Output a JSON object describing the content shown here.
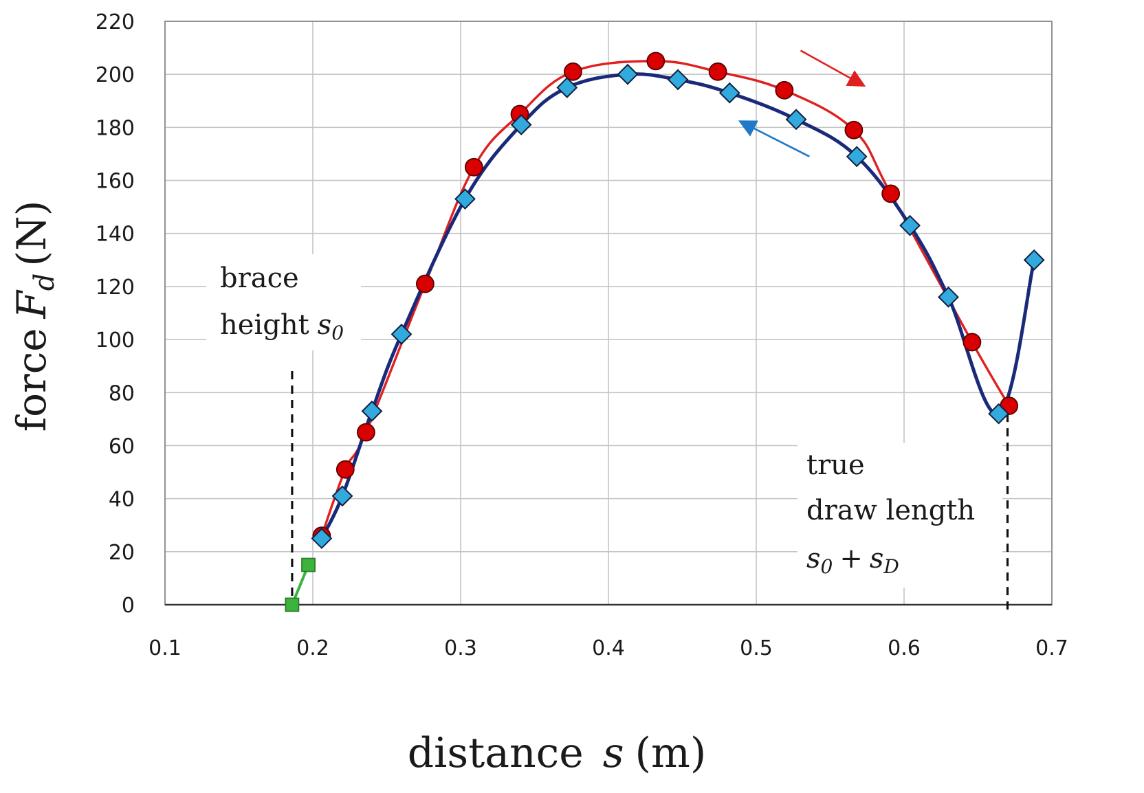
{
  "chart_data": {
    "type": "line",
    "xlabel": {
      "prefix": "distance",
      "symbol": "s",
      "unit": "(m)"
    },
    "ylabel": {
      "prefix": "force",
      "symbol": "F",
      "subscript": "d",
      "unit": "(N)"
    },
    "xlim": [
      0.1,
      0.7
    ],
    "ylim": [
      0,
      220
    ],
    "xticks": [
      0.1,
      0.2,
      0.3,
      0.4,
      0.5,
      0.6,
      0.7
    ],
    "xtick_labels": [
      "0.1",
      "0.2",
      "0.3",
      "0.4",
      "0.5",
      "0.6",
      "0.7"
    ],
    "yticks": [
      0,
      20,
      40,
      60,
      80,
      100,
      120,
      140,
      160,
      180,
      200,
      220
    ],
    "ytick_labels": [
      "0",
      "20",
      "40",
      "60",
      "80",
      "100",
      "120",
      "140",
      "160",
      "180",
      "200",
      "220"
    ],
    "grid": true,
    "series": [
      {
        "marker": "square",
        "color": "#3cb43c",
        "edge_color": "#2a7a2a",
        "points": [
          [
            0.186,
            0
          ],
          [
            0.197,
            15
          ]
        ]
      },
      {
        "marker": "circle",
        "color": "#d80000",
        "line_color": "#e02020",
        "points": [
          [
            0.206,
            26
          ],
          [
            0.222,
            51
          ],
          [
            0.236,
            65
          ],
          [
            0.276,
            121
          ],
          [
            0.309,
            165
          ],
          [
            0.34,
            185
          ],
          [
            0.376,
            201
          ],
          [
            0.432,
            205
          ],
          [
            0.474,
            201
          ],
          [
            0.519,
            194
          ],
          [
            0.566,
            179
          ],
          [
            0.591,
            155
          ],
          [
            0.646,
            99
          ],
          [
            0.671,
            75
          ]
        ]
      },
      {
        "marker": "diamond",
        "color": "#33aadd",
        "line_color": "#1a2a7a",
        "points": [
          [
            0.206,
            25
          ],
          [
            0.22,
            41
          ],
          [
            0.24,
            73
          ],
          [
            0.26,
            102
          ],
          [
            0.303,
            153
          ],
          [
            0.341,
            181
          ],
          [
            0.372,
            195
          ],
          [
            0.413,
            200
          ],
          [
            0.447,
            198
          ],
          [
            0.482,
            193
          ],
          [
            0.527,
            183
          ],
          [
            0.568,
            169
          ],
          [
            0.604,
            143
          ],
          [
            0.63,
            116
          ],
          [
            0.664,
            72
          ],
          [
            0.688,
            130
          ]
        ]
      }
    ],
    "annotations": {
      "brace": {
        "line1": "brace",
        "line2": "height",
        "symbol": "s",
        "sub": "0",
        "x": 0.186
      },
      "draw": {
        "line1": "true",
        "line2": "draw length",
        "sym1": "s",
        "sub1": "0",
        "plus": "+",
        "sym2": "s",
        "sub2": "D",
        "x": 0.67
      }
    },
    "arrows": [
      {
        "color": "#e02020",
        "from": [
          0.53,
          209
        ],
        "to": [
          0.572,
          196
        ]
      },
      {
        "color": "#1f78c8",
        "from": [
          0.536,
          169
        ],
        "to": [
          0.49,
          182
        ]
      }
    ]
  }
}
